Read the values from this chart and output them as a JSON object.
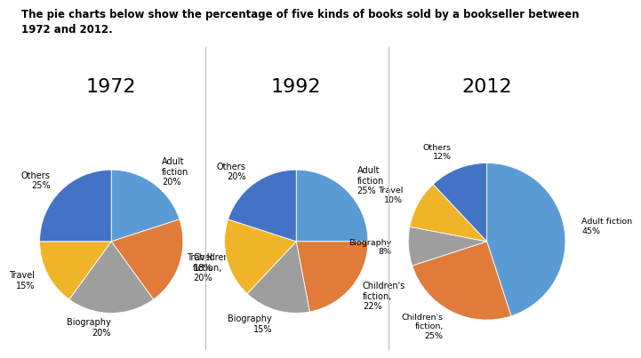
{
  "title": "The pie charts below show the percentage of five kinds of books sold by a bookseller between\n1972 and 2012.",
  "years": [
    "1972",
    "1992",
    "2012"
  ],
  "data": {
    "1972": [
      20,
      20,
      20,
      15,
      25
    ],
    "1992": [
      25,
      22,
      15,
      18,
      20
    ],
    "2012": [
      45,
      25,
      8,
      10,
      12
    ]
  },
  "labels": {
    "1972": [
      "Adult\nfiction\n20%",
      "Children's\nfiction,\n20%",
      "Biography\n20%",
      "Travel\n15%",
      "Others\n25%"
    ],
    "1992": [
      "Adult\nfiction\n25%",
      "Children's\nfiction,\n22%",
      "Biography\n15%",
      "Travel\n18%",
      "Others\n20%"
    ],
    "2012": [
      "Adult fiction\n45%",
      "Children's\nfiction,\n25%",
      "Biography\n8%",
      "Travel\n10%",
      "Others\n12%"
    ]
  },
  "color_order": [
    "#5B9BD5",
    "#E07B39",
    "#9E9E9E",
    "#F0B429",
    "#4472C4"
  ],
  "startangle_1972": 90,
  "startangle_1992": 90,
  "startangle_2012": 90,
  "divider_color": "#BBBBBB",
  "background_color": "#FFFFFF",
  "title_fontsize": 8.5,
  "label_fontsize": 7,
  "year_fontsize": 16
}
